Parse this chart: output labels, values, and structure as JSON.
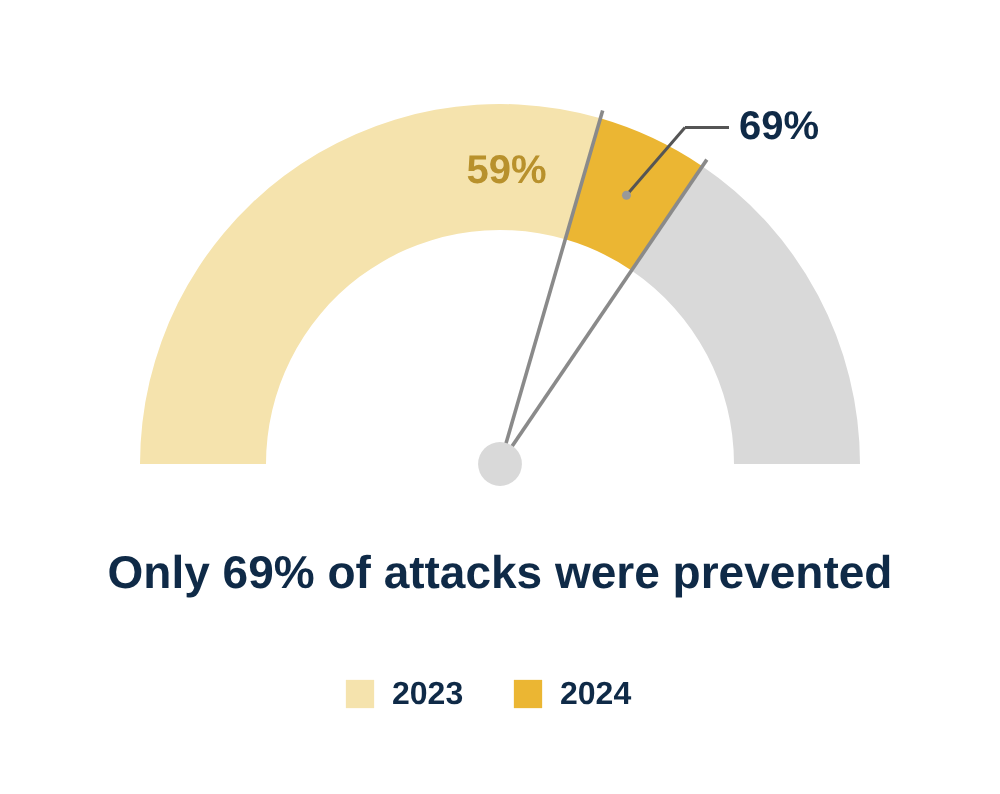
{
  "chart_data": {
    "type": "donut",
    "title": "Only 69% of attacks were prevented",
    "categories": [
      "2023",
      "2024",
      null
    ],
    "values": [
      59,
      10,
      31
    ],
    "colors": [
      "#f5e3ad",
      "#ebb633",
      "#d9d9d9"
    ],
    "value_labels": [
      "59%",
      null,
      null
    ],
    "annotations": [
      "69%"
    ],
    "needle": "2024",
    "legend": "bottom"
  }
}
